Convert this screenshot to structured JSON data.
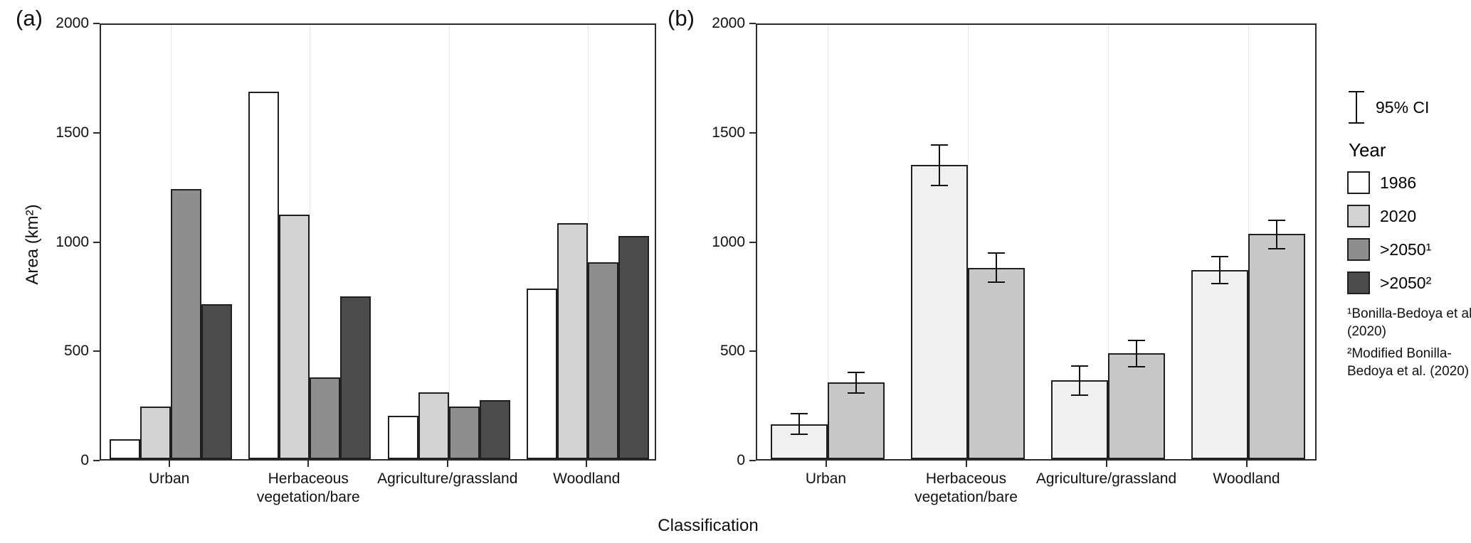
{
  "figure": {
    "panel_a_label": "(a)",
    "panel_b_label": "(b)",
    "ylabel": "Area (km²)",
    "xlabel": "Classification"
  },
  "legend": {
    "ci_label": "95% CI",
    "year_title": "Year",
    "entries": [
      {
        "label": "1986",
        "color": "#FFFFFF"
      },
      {
        "label": "2020",
        "color": "#D2D2D2"
      },
      {
        "label": ">2050¹",
        "color": "#8E8E8E"
      },
      {
        "label": ">2050²",
        "color": "#4B4B4B"
      }
    ],
    "footnotes": [
      "¹Bonilla-Bedoya et al. (2020)",
      "²Modified Bonilla-Bedoya et al. (2020)"
    ]
  },
  "chart_data": {
    "type": "bar",
    "title": "",
    "xlabel": "Classification",
    "ylabel": "Area (km²)",
    "ylim": [
      0,
      2000
    ],
    "yticks": [
      0,
      500,
      1000,
      1500,
      2000
    ],
    "grid": "faint vertical gridlines at category centers",
    "legend_position": "right",
    "categories": [
      "Urban",
      "Herbaceous\nvegetation/bare",
      "Agriculture/grassland",
      "Woodland"
    ],
    "panels": [
      {
        "id": "a",
        "label": "(a)",
        "series": [
          {
            "name": "1986",
            "color": "#FFFFFF",
            "values": [
              90,
              1680,
              200,
              780
            ]
          },
          {
            "name": "2020",
            "color": "#D2D2D2",
            "values": [
              240,
              1120,
              305,
              1080
            ]
          },
          {
            "name": ">2050¹",
            "color": "#8E8E8E",
            "values": [
              1235,
              375,
              240,
              900
            ]
          },
          {
            "name": ">2050²",
            "color": "#4B4B4B",
            "values": [
              710,
              745,
              270,
              1020
            ]
          }
        ]
      },
      {
        "id": "b",
        "label": "(b)",
        "error_bars": "95% CI",
        "series": [
          {
            "name": "1986",
            "color": "#F0F0F0",
            "values": [
              160,
              1345,
              360,
              865
            ],
            "ci_lower": [
              110,
              1250,
              290,
              800
            ],
            "ci_upper": [
              210,
              1440,
              430,
              930
            ]
          },
          {
            "name": "2020",
            "color": "#C8C8C8",
            "values": [
              350,
              875,
              485,
              1030
            ],
            "ci_lower": [
              300,
              805,
              420,
              960
            ],
            "ci_upper": [
              400,
              945,
              545,
              1095
            ]
          }
        ]
      }
    ]
  }
}
